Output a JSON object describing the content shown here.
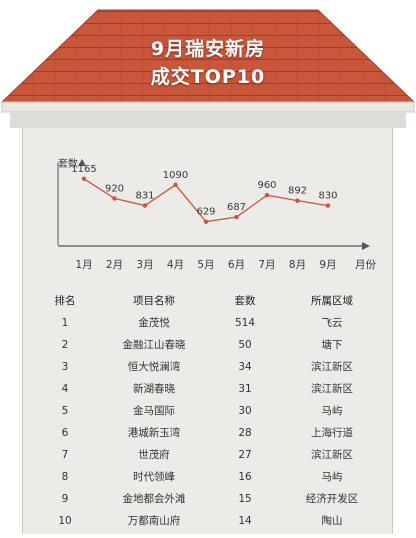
{
  "title_line1": "9月瑞安新房",
  "title_line2": "成交TOP10",
  "colors": {
    "roof": "#c8573c",
    "roof_dark": "#a84430",
    "line": "#c8573c",
    "panel": "#ecebe8"
  },
  "chart_data": {
    "type": "line",
    "ylabel": "套数",
    "xlabel": "月份",
    "categories": [
      "1月",
      "2月",
      "3月",
      "4月",
      "5月",
      "6月",
      "7月",
      "8月",
      "9月"
    ],
    "values": [
      1165,
      920,
      831,
      1090,
      629,
      687,
      960,
      892,
      830
    ],
    "ylim": [
      500,
      1250
    ],
    "grid": false
  },
  "table": {
    "headers": [
      "排名",
      "项目名称",
      "套数",
      "所属区域"
    ],
    "rows": [
      [
        "1",
        "金茂悦",
        "514",
        "飞云"
      ],
      [
        "2",
        "金融江山春晓",
        "50",
        "塘下"
      ],
      [
        "3",
        "恒大悦澜湾",
        "34",
        "滨江新区"
      ],
      [
        "4",
        "新湖春晓",
        "31",
        "滨江新区"
      ],
      [
        "5",
        "金马国际",
        "30",
        "马屿"
      ],
      [
        "6",
        "港城新玉湾",
        "28",
        "上海行道"
      ],
      [
        "7",
        "世茂府",
        "27",
        "滨江新区"
      ],
      [
        "8",
        "时代领峰",
        "16",
        "马屿"
      ],
      [
        "9",
        "金地都会外滩",
        "15",
        "经济开发区"
      ],
      [
        "10",
        "万都南山府",
        "14",
        "陶山"
      ]
    ]
  }
}
